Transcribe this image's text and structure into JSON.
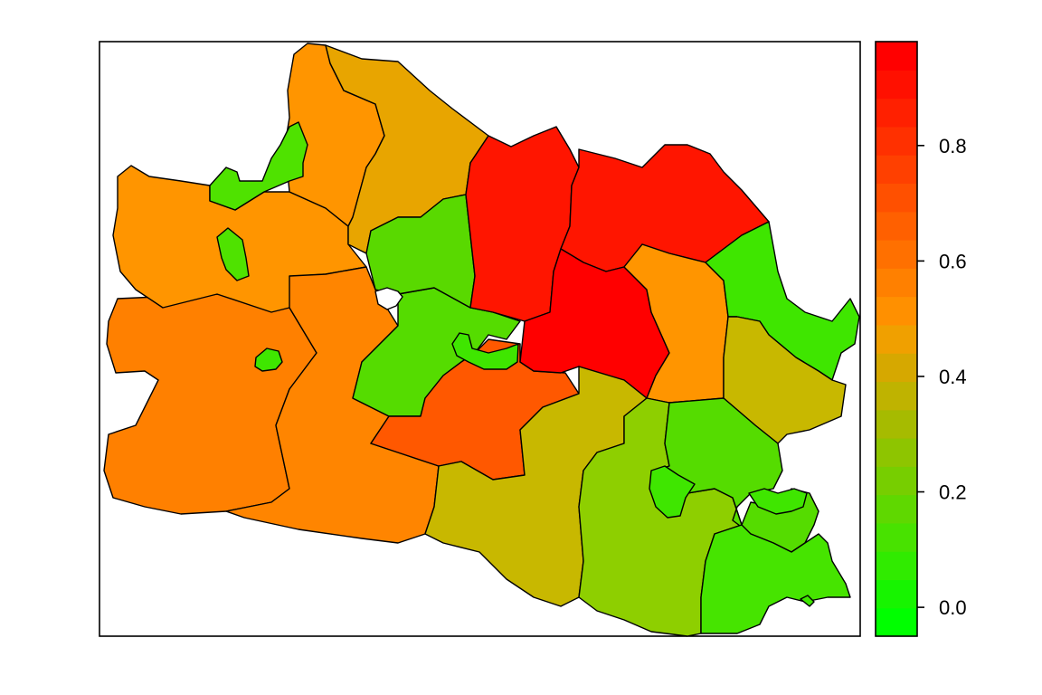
{
  "map": {
    "type": "choropleth",
    "legend_position": "right",
    "legend": {
      "ticks": [
        "0.0",
        "0.2",
        "0.4",
        "0.6",
        "0.8"
      ],
      "range": [
        -0.05,
        0.98
      ],
      "colors": [
        "#00ff00",
        "#17f400",
        "#30eb00",
        "#48e200",
        "#5fd800",
        "#77ce00",
        "#8ec500",
        "#a6bb00",
        "#bfb300",
        "#d6a800",
        "#f0a000",
        "#ff9000",
        "#ff8000",
        "#ff7000",
        "#ff6000",
        "#ff5000",
        "#ff4000",
        "#ff3000",
        "#ff2000",
        "#ff1000",
        "#ff0000"
      ]
    },
    "regions": [
      {
        "name": "west-main-region",
        "value": 0.58,
        "color": "#ff8000"
      },
      {
        "name": "northwest-region",
        "value": 0.48,
        "color": "#ff9500"
      },
      {
        "name": "north-coast-west-region",
        "value": 0.48,
        "color": "#ff9500"
      },
      {
        "name": "north-coast-central-region",
        "value": 0.42,
        "color": "#e8a500"
      },
      {
        "name": "west-enclave-region",
        "value": 0.2,
        "color": "#4fe200"
      },
      {
        "name": "small-enclave-region",
        "value": 0.2,
        "color": "#4fe200"
      },
      {
        "name": "central-west-region",
        "value": 0.58,
        "color": "#ff8500"
      },
      {
        "name": "central-region",
        "value": 0.2,
        "color": "#55dc00"
      },
      {
        "name": "central-north-region",
        "value": 0.2,
        "color": "#59d900"
      },
      {
        "name": "central-south-region",
        "value": 0.68,
        "color": "#ff5800"
      },
      {
        "name": "north-red-west-region",
        "value": 0.93,
        "color": "#ff1500"
      },
      {
        "name": "north-red-east-region",
        "value": 0.93,
        "color": "#ff1500"
      },
      {
        "name": "central-red-region",
        "value": 0.98,
        "color": "#ff0000"
      },
      {
        "name": "central-east-region",
        "value": 0.48,
        "color": "#ff9500"
      },
      {
        "name": "northeast-region",
        "value": 0.15,
        "color": "#3fe600"
      },
      {
        "name": "east-region",
        "value": 0.35,
        "color": "#c8b800"
      },
      {
        "name": "south-central-region",
        "value": 0.35,
        "color": "#c8b800"
      },
      {
        "name": "south-east-region",
        "value": 0.28,
        "color": "#8ecf00"
      },
      {
        "name": "southeast-region",
        "value": 0.2,
        "color": "#55dc00"
      },
      {
        "name": "southeast-coast-region",
        "value": 0.15,
        "color": "#46e400"
      },
      {
        "name": "city-enclave-1",
        "value": 0.15,
        "color": "#3fe600"
      },
      {
        "name": "city-enclave-2",
        "value": 0.15,
        "color": "#3fe600"
      },
      {
        "name": "city-enclave-3",
        "value": 0.15,
        "color": "#3fe600"
      },
      {
        "name": "city-enclave-4",
        "value": 0.15,
        "color": "#3fe600"
      },
      {
        "name": "city-enclave-5",
        "value": 0.15,
        "color": "#3fe600"
      },
      {
        "name": "no-data-region",
        "value": null,
        "color": "#ffffff"
      }
    ]
  }
}
